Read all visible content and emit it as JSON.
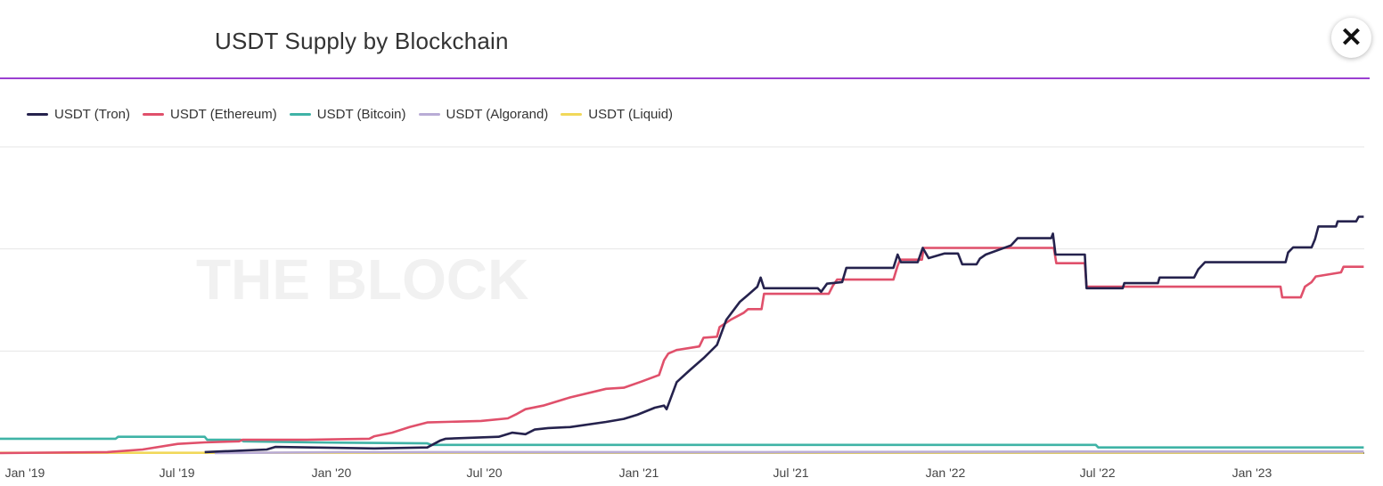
{
  "header": {
    "title": "USDT Supply by Blockchain",
    "close_icon": "close-x-icon"
  },
  "watermark": "THE BLOCK",
  "colors": {
    "accent_rule": "#9b3fd1"
  },
  "chart_data": {
    "type": "line",
    "title": "USDT Supply by Blockchain",
    "xlabel": "",
    "ylabel": "",
    "x_type": "date",
    "xlim": [
      "2018-12-02",
      "2023-05-14"
    ],
    "ylim": [
      0,
      60
    ],
    "y_tick_labels_visible": false,
    "grid": true,
    "legend": "top-left",
    "x_ticks": [
      "Jan '19",
      "Jul '19",
      "Jan '20",
      "Jul '20",
      "Jan '21",
      "Jul '21",
      "Jan '22",
      "Jul '22",
      "Jan '23"
    ],
    "series": [
      {
        "name": "USDT (Tron)",
        "color": "#25224d",
        "points": [
          [
            "2019-08-03",
            0.2
          ],
          [
            "2019-10-16",
            0.7
          ],
          [
            "2019-10-26",
            1.2
          ],
          [
            "2020-02-21",
            0.9
          ],
          [
            "2020-04-24",
            1.1
          ],
          [
            "2020-05-10",
            2.5
          ],
          [
            "2020-05-16",
            2.8
          ],
          [
            "2020-07-18",
            3.2
          ],
          [
            "2020-08-03",
            4.0
          ],
          [
            "2020-08-19",
            3.7
          ],
          [
            "2020-08-30",
            4.6
          ],
          [
            "2020-09-15",
            4.9
          ],
          [
            "2020-10-11",
            5.1
          ],
          [
            "2020-11-23",
            6.1
          ],
          [
            "2020-12-14",
            6.7
          ],
          [
            "2020-12-30",
            7.5
          ],
          [
            "2021-01-20",
            8.9
          ],
          [
            "2021-01-31",
            9.3
          ],
          [
            "2021-02-03",
            8.6
          ],
          [
            "2021-02-15",
            13.9
          ],
          [
            "2021-03-03",
            16.3
          ],
          [
            "2021-03-19",
            18.6
          ],
          [
            "2021-04-04",
            21.2
          ],
          [
            "2021-04-15",
            26.1
          ],
          [
            "2021-05-01",
            29.6
          ],
          [
            "2021-05-11",
            31.0
          ],
          [
            "2021-05-22",
            32.6
          ],
          [
            "2021-05-26",
            34.4
          ],
          [
            "2021-05-30",
            32.3
          ],
          [
            "2021-08-02",
            32.3
          ],
          [
            "2021-08-06",
            31.6
          ],
          [
            "2021-08-13",
            33.2
          ],
          [
            "2021-08-31",
            33.5
          ],
          [
            "2021-09-05",
            36.3
          ],
          [
            "2021-10-31",
            36.3
          ],
          [
            "2021-11-05",
            38.9
          ],
          [
            "2021-11-09",
            37.4
          ],
          [
            "2021-11-29",
            37.4
          ],
          [
            "2021-12-05",
            40.2
          ],
          [
            "2021-12-12",
            38.2
          ],
          [
            "2021-12-31",
            39.1
          ],
          [
            "2022-01-16",
            39.1
          ],
          [
            "2022-01-21",
            37.0
          ],
          [
            "2022-02-07",
            37.0
          ],
          [
            "2022-02-11",
            38.1
          ],
          [
            "2022-02-18",
            38.9
          ],
          [
            "2022-03-20",
            40.7
          ],
          [
            "2022-03-28",
            42.1
          ],
          [
            "2022-05-07",
            42.1
          ],
          [
            "2022-05-09",
            43.0
          ],
          [
            "2022-05-12",
            38.9
          ],
          [
            "2022-06-16",
            38.9
          ],
          [
            "2022-06-18",
            32.3
          ],
          [
            "2022-07-31",
            32.3
          ],
          [
            "2022-08-02",
            33.3
          ],
          [
            "2022-09-11",
            33.3
          ],
          [
            "2022-09-13",
            34.4
          ],
          [
            "2022-10-24",
            34.4
          ],
          [
            "2022-10-29",
            36.0
          ],
          [
            "2022-11-06",
            37.4
          ],
          [
            "2023-02-10",
            37.4
          ],
          [
            "2023-02-13",
            39.3
          ],
          [
            "2023-02-19",
            40.3
          ],
          [
            "2023-03-13",
            40.3
          ],
          [
            "2023-03-17",
            41.9
          ],
          [
            "2023-03-21",
            44.4
          ],
          [
            "2023-04-11",
            44.4
          ],
          [
            "2023-04-13",
            45.4
          ],
          [
            "2023-05-05",
            45.4
          ],
          [
            "2023-05-08",
            46.3
          ],
          [
            "2023-05-14",
            46.3
          ]
        ]
      },
      {
        "name": "USDT (Ethereum)",
        "color": "#e0506b",
        "points": [
          [
            "2018-12-02",
            0
          ],
          [
            "2019-04-09",
            0.2
          ],
          [
            "2019-05-21",
            0.7
          ],
          [
            "2019-07-02",
            1.8
          ],
          [
            "2019-08-03",
            2.1
          ],
          [
            "2019-09-13",
            2.3
          ],
          [
            "2019-09-17",
            2.6
          ],
          [
            "2019-12-03",
            2.6
          ],
          [
            "2020-02-15",
            2.8
          ],
          [
            "2020-02-21",
            3.3
          ],
          [
            "2020-03-13",
            4.0
          ],
          [
            "2020-04-03",
            5.1
          ],
          [
            "2020-04-24",
            6.0
          ],
          [
            "2020-05-16",
            6.1
          ],
          [
            "2020-06-27",
            6.3
          ],
          [
            "2020-07-29",
            6.8
          ],
          [
            "2020-08-09",
            7.7
          ],
          [
            "2020-08-19",
            8.6
          ],
          [
            "2020-09-09",
            9.3
          ],
          [
            "2020-10-11",
            10.9
          ],
          [
            "2020-11-23",
            12.6
          ],
          [
            "2020-12-14",
            12.8
          ],
          [
            "2021-01-04",
            14.0
          ],
          [
            "2021-01-25",
            15.3
          ],
          [
            "2021-01-31",
            18.2
          ],
          [
            "2021-02-05",
            19.5
          ],
          [
            "2021-02-15",
            20.2
          ],
          [
            "2021-03-14",
            20.9
          ],
          [
            "2021-03-19",
            22.6
          ],
          [
            "2021-04-04",
            22.8
          ],
          [
            "2021-04-07",
            24.7
          ],
          [
            "2021-04-20",
            26.1
          ],
          [
            "2021-05-06",
            27.5
          ],
          [
            "2021-05-11",
            28.2
          ],
          [
            "2021-05-27",
            28.2
          ],
          [
            "2021-05-30",
            31.2
          ],
          [
            "2021-08-15",
            31.2
          ],
          [
            "2021-08-20",
            32.8
          ],
          [
            "2021-08-25",
            34.0
          ],
          [
            "2021-10-31",
            34.0
          ],
          [
            "2021-11-05",
            36.7
          ],
          [
            "2021-11-08",
            37.9
          ],
          [
            "2021-12-04",
            37.9
          ],
          [
            "2021-12-06",
            40.2
          ],
          [
            "2022-05-10",
            40.2
          ],
          [
            "2022-05-13",
            37.2
          ],
          [
            "2022-06-16",
            37.2
          ],
          [
            "2022-06-18",
            32.6
          ],
          [
            "2023-02-04",
            32.6
          ],
          [
            "2023-02-06",
            30.5
          ],
          [
            "2023-02-28",
            30.5
          ],
          [
            "2023-03-05",
            32.6
          ],
          [
            "2023-03-13",
            33.5
          ],
          [
            "2023-03-18",
            34.6
          ],
          [
            "2023-04-17",
            35.4
          ],
          [
            "2023-04-20",
            36.5
          ],
          [
            "2023-05-14",
            36.5
          ]
        ]
      },
      {
        "name": "USDT (Bitcoin)",
        "color": "#3fb3a6",
        "points": [
          [
            "2018-12-02",
            2.8
          ],
          [
            "2019-04-19",
            2.8
          ],
          [
            "2019-04-22",
            3.2
          ],
          [
            "2019-08-03",
            3.2
          ],
          [
            "2019-08-06",
            2.6
          ],
          [
            "2019-09-15",
            2.6
          ],
          [
            "2019-09-18",
            2.3
          ],
          [
            "2019-12-08",
            2.1
          ],
          [
            "2020-04-24",
            1.9
          ],
          [
            "2020-04-29",
            1.6
          ],
          [
            "2022-06-29",
            1.6
          ],
          [
            "2022-07-02",
            1.1
          ],
          [
            "2023-05-14",
            1.1
          ]
        ]
      },
      {
        "name": "USDT (Algorand)",
        "color": "#b9acd6",
        "points": [
          [
            "2019-08-15",
            0
          ],
          [
            "2020-01-15",
            0.2
          ],
          [
            "2021-06-01",
            0.2
          ],
          [
            "2022-06-01",
            0.3
          ],
          [
            "2023-05-14",
            0.3
          ]
        ]
      },
      {
        "name": "USDT (Liquid)",
        "color": "#f1d85a",
        "points": [
          [
            "2018-12-02",
            0.05
          ],
          [
            "2020-01-01",
            0.05
          ],
          [
            "2021-01-01",
            0.1
          ],
          [
            "2023-05-14",
            0.1
          ]
        ]
      }
    ]
  }
}
